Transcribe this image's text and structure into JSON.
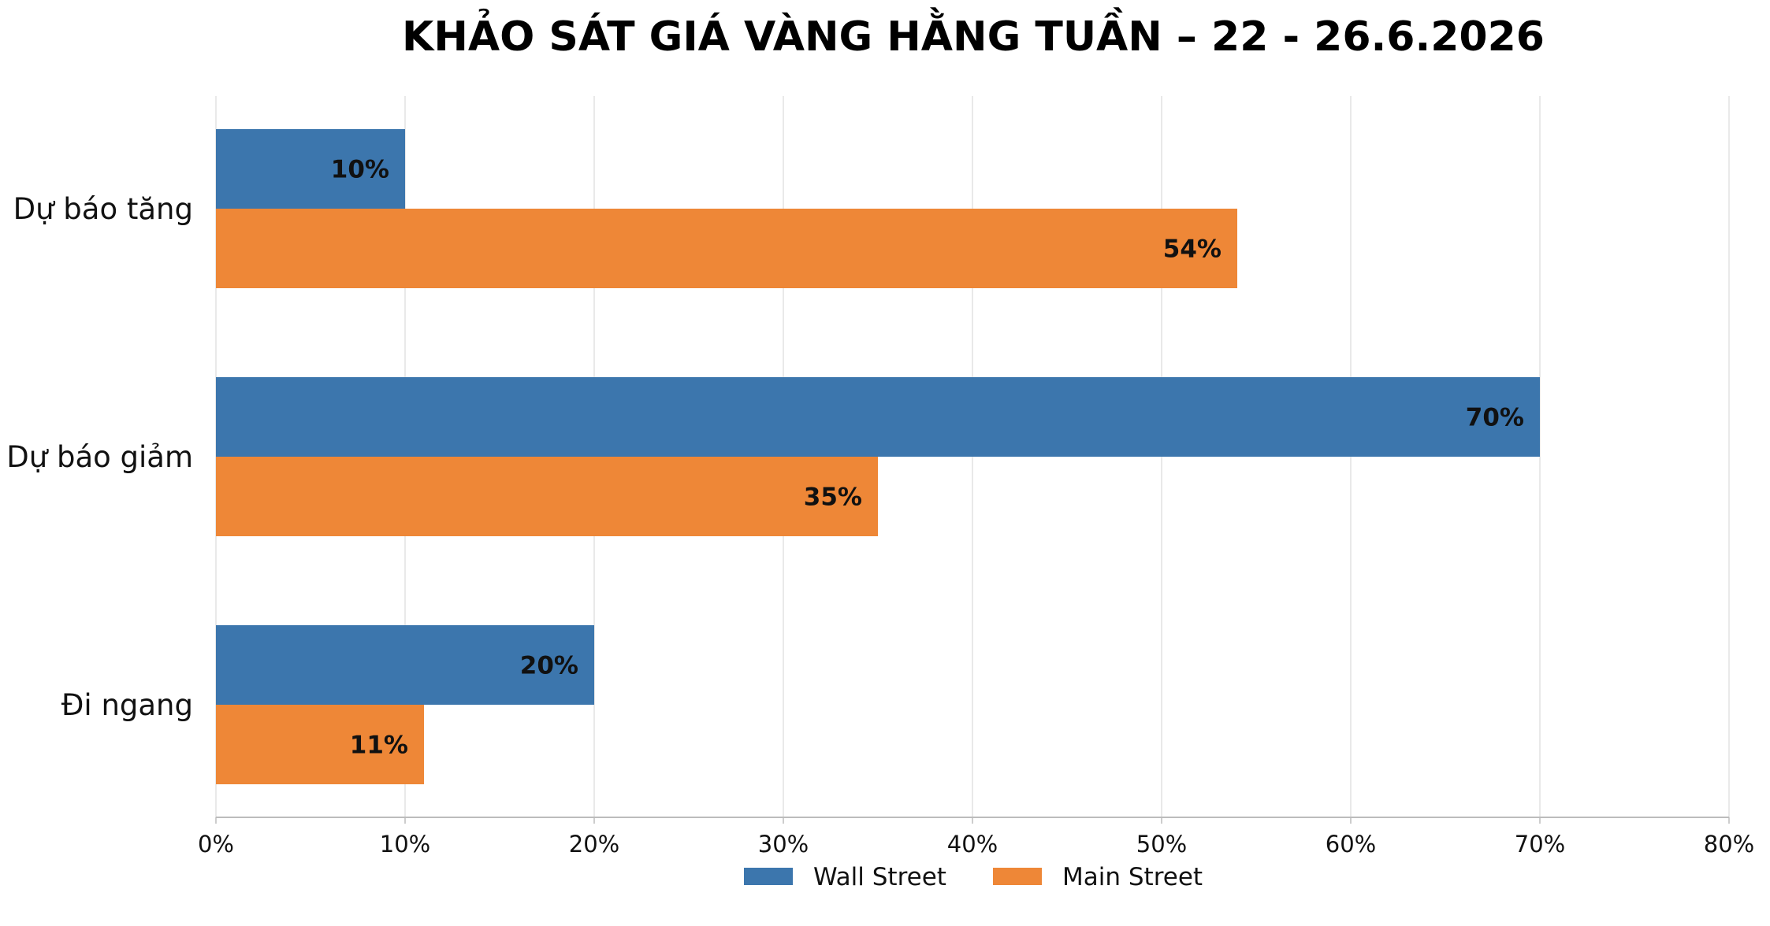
{
  "chart_data": {
    "type": "bar",
    "orientation": "horizontal",
    "title": "KHẢO SÁT GIÁ VÀNG HẰNG TUẦN – 22 - 26.6.2026",
    "categories": [
      "Dự báo tăng",
      "Dự báo giảm",
      "Đi ngang"
    ],
    "series": [
      {
        "name": "Wall Street",
        "color": "#3c76ad",
        "values": [
          10,
          70,
          20
        ],
        "labels": [
          "10%",
          "70%",
          "20%"
        ]
      },
      {
        "name": "Main Street",
        "color": "#ee8737",
        "values": [
          54,
          35,
          11
        ],
        "labels": [
          "54%",
          "35%",
          "11%"
        ]
      }
    ],
    "xlim": [
      0,
      80
    ],
    "x_ticks": [
      "0%",
      "10%",
      "20%",
      "30%",
      "40%",
      "50%",
      "60%",
      "70%",
      "80%"
    ],
    "grid": "vertical",
    "legend_position": "bottom"
  }
}
